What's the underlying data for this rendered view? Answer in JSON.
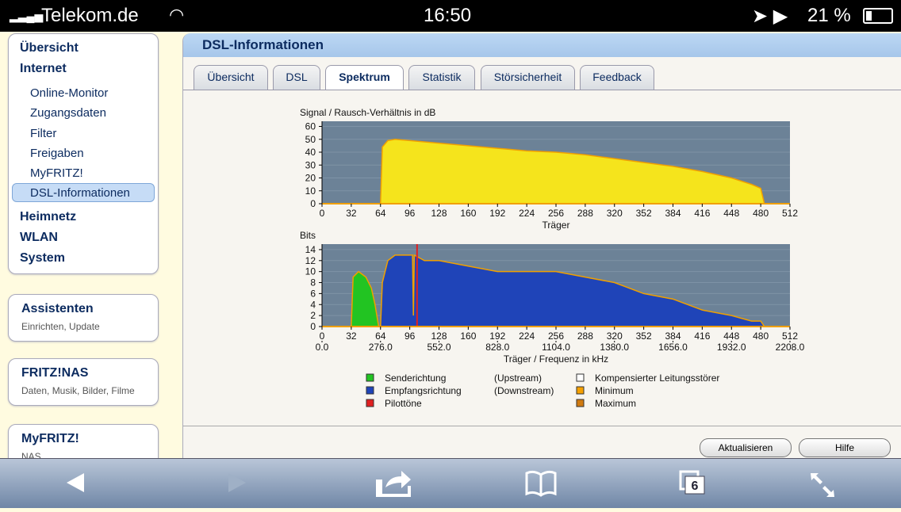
{
  "status_bar": {
    "carrier": "Telekom.de",
    "time": "16:50",
    "battery": "21 %"
  },
  "menu": {
    "top_items": [
      "Übersicht",
      "Internet"
    ],
    "internet_items": [
      "Online-Monitor",
      "Zugangsdaten",
      "Filter",
      "Freigaben",
      "MyFRITZ!",
      "DSL-Informationen"
    ],
    "more_items": [
      "Heimnetz",
      "WLAN",
      "System"
    ]
  },
  "boxes": [
    {
      "title": "Assistenten",
      "text": "Einrichten, Update"
    },
    {
      "title": "FRITZ!NAS",
      "text": "Daten, Musik, Bilder, Filme"
    },
    {
      "title": "MyFRITZ!",
      "text": "NAS"
    }
  ],
  "panel": {
    "title": "DSL-Informationen",
    "tabs": [
      "Übersicht",
      "DSL",
      "Spektrum",
      "Statistik",
      "Störsicherheit",
      "Feedback"
    ],
    "buttons": [
      "Aktualisieren",
      "Hilfe"
    ]
  },
  "toolbar": {
    "tab_count": "6"
  },
  "chart_data": [
    {
      "type": "area",
      "ylabel": "Signal / Rausch-Verhältnis in dB",
      "xlabel": "Träger",
      "xlim": [
        0,
        512
      ],
      "xticks": [
        0,
        32,
        64,
        96,
        128,
        160,
        192,
        224,
        256,
        288,
        320,
        352,
        384,
        416,
        448,
        480,
        512
      ],
      "ylim": [
        0,
        64
      ],
      "yticks": [
        0,
        10,
        20,
        30,
        40,
        50,
        60
      ],
      "grid": true,
      "series": [
        {
          "color": "#f5e41c",
          "x": [
            64,
            66,
            72,
            80,
            96,
            128,
            160,
            192,
            224,
            256,
            288,
            320,
            352,
            384,
            416,
            448,
            470,
            480,
            484
          ],
          "values": [
            0,
            44,
            49,
            50,
            49,
            47,
            45,
            43,
            41,
            40,
            38,
            35,
            32,
            29,
            25,
            20,
            15,
            12,
            0
          ]
        }
      ]
    },
    {
      "type": "area",
      "ylabel": "Bits",
      "xlabel": "Träger / Frequenz in kHz",
      "xlim": [
        0,
        512
      ],
      "xticks": [
        0,
        32,
        64,
        96,
        128,
        160,
        192,
        224,
        256,
        288,
        320,
        352,
        384,
        416,
        448,
        480,
        512
      ],
      "x2lim": [
        0,
        2208
      ],
      "x2ticks": [
        {
          "value": 0,
          "label": "0.0"
        },
        {
          "value": 276,
          "label": "276.0"
        },
        {
          "value": 552,
          "label": "552.0"
        },
        {
          "value": 828,
          "label": "828.0"
        },
        {
          "value": 1104,
          "label": "1104.0"
        },
        {
          "value": 1380,
          "label": "1380.0"
        },
        {
          "value": 1656,
          "label": "1656.0"
        },
        {
          "value": 1932,
          "label": "1932.0"
        },
        {
          "value": 2208,
          "label": "2208.0"
        }
      ],
      "ylim": [
        0,
        15
      ],
      "yticks": [
        0,
        2,
        4,
        6,
        8,
        10,
        12,
        14
      ],
      "grid": true,
      "series": [
        {
          "name": "Senderichtung",
          "note": "(Upstream)",
          "color": "#22c422",
          "x": [
            32,
            34,
            40,
            48,
            54,
            58,
            62
          ],
          "values": [
            0,
            9,
            10,
            9,
            7,
            4,
            0
          ]
        },
        {
          "name": "Empfangsrichtung",
          "note": "(Downstream)",
          "color": "#1f44b8",
          "x": [
            64,
            66,
            72,
            80,
            96,
            99,
            100,
            101,
            112,
            128,
            160,
            192,
            224,
            256,
            288,
            320,
            352,
            384,
            416,
            448,
            470,
            480,
            484
          ],
          "values": [
            0,
            8,
            12,
            13,
            13,
            13,
            2,
            13,
            12,
            12,
            11,
            10,
            10,
            10,
            9,
            8,
            6,
            5,
            3,
            2,
            1,
            1,
            0
          ]
        },
        {
          "name": "Pilottöne",
          "color": "#e02020",
          "x": [
            104
          ],
          "values": [
            15
          ]
        }
      ],
      "legend_extra": [
        {
          "name": "Kompensierter Leitungsstörer",
          "color": "#ffffff"
        },
        {
          "name": "Minimum",
          "color": "#f5a000"
        },
        {
          "name": "Maximum",
          "color": "#d07a10"
        }
      ]
    }
  ]
}
